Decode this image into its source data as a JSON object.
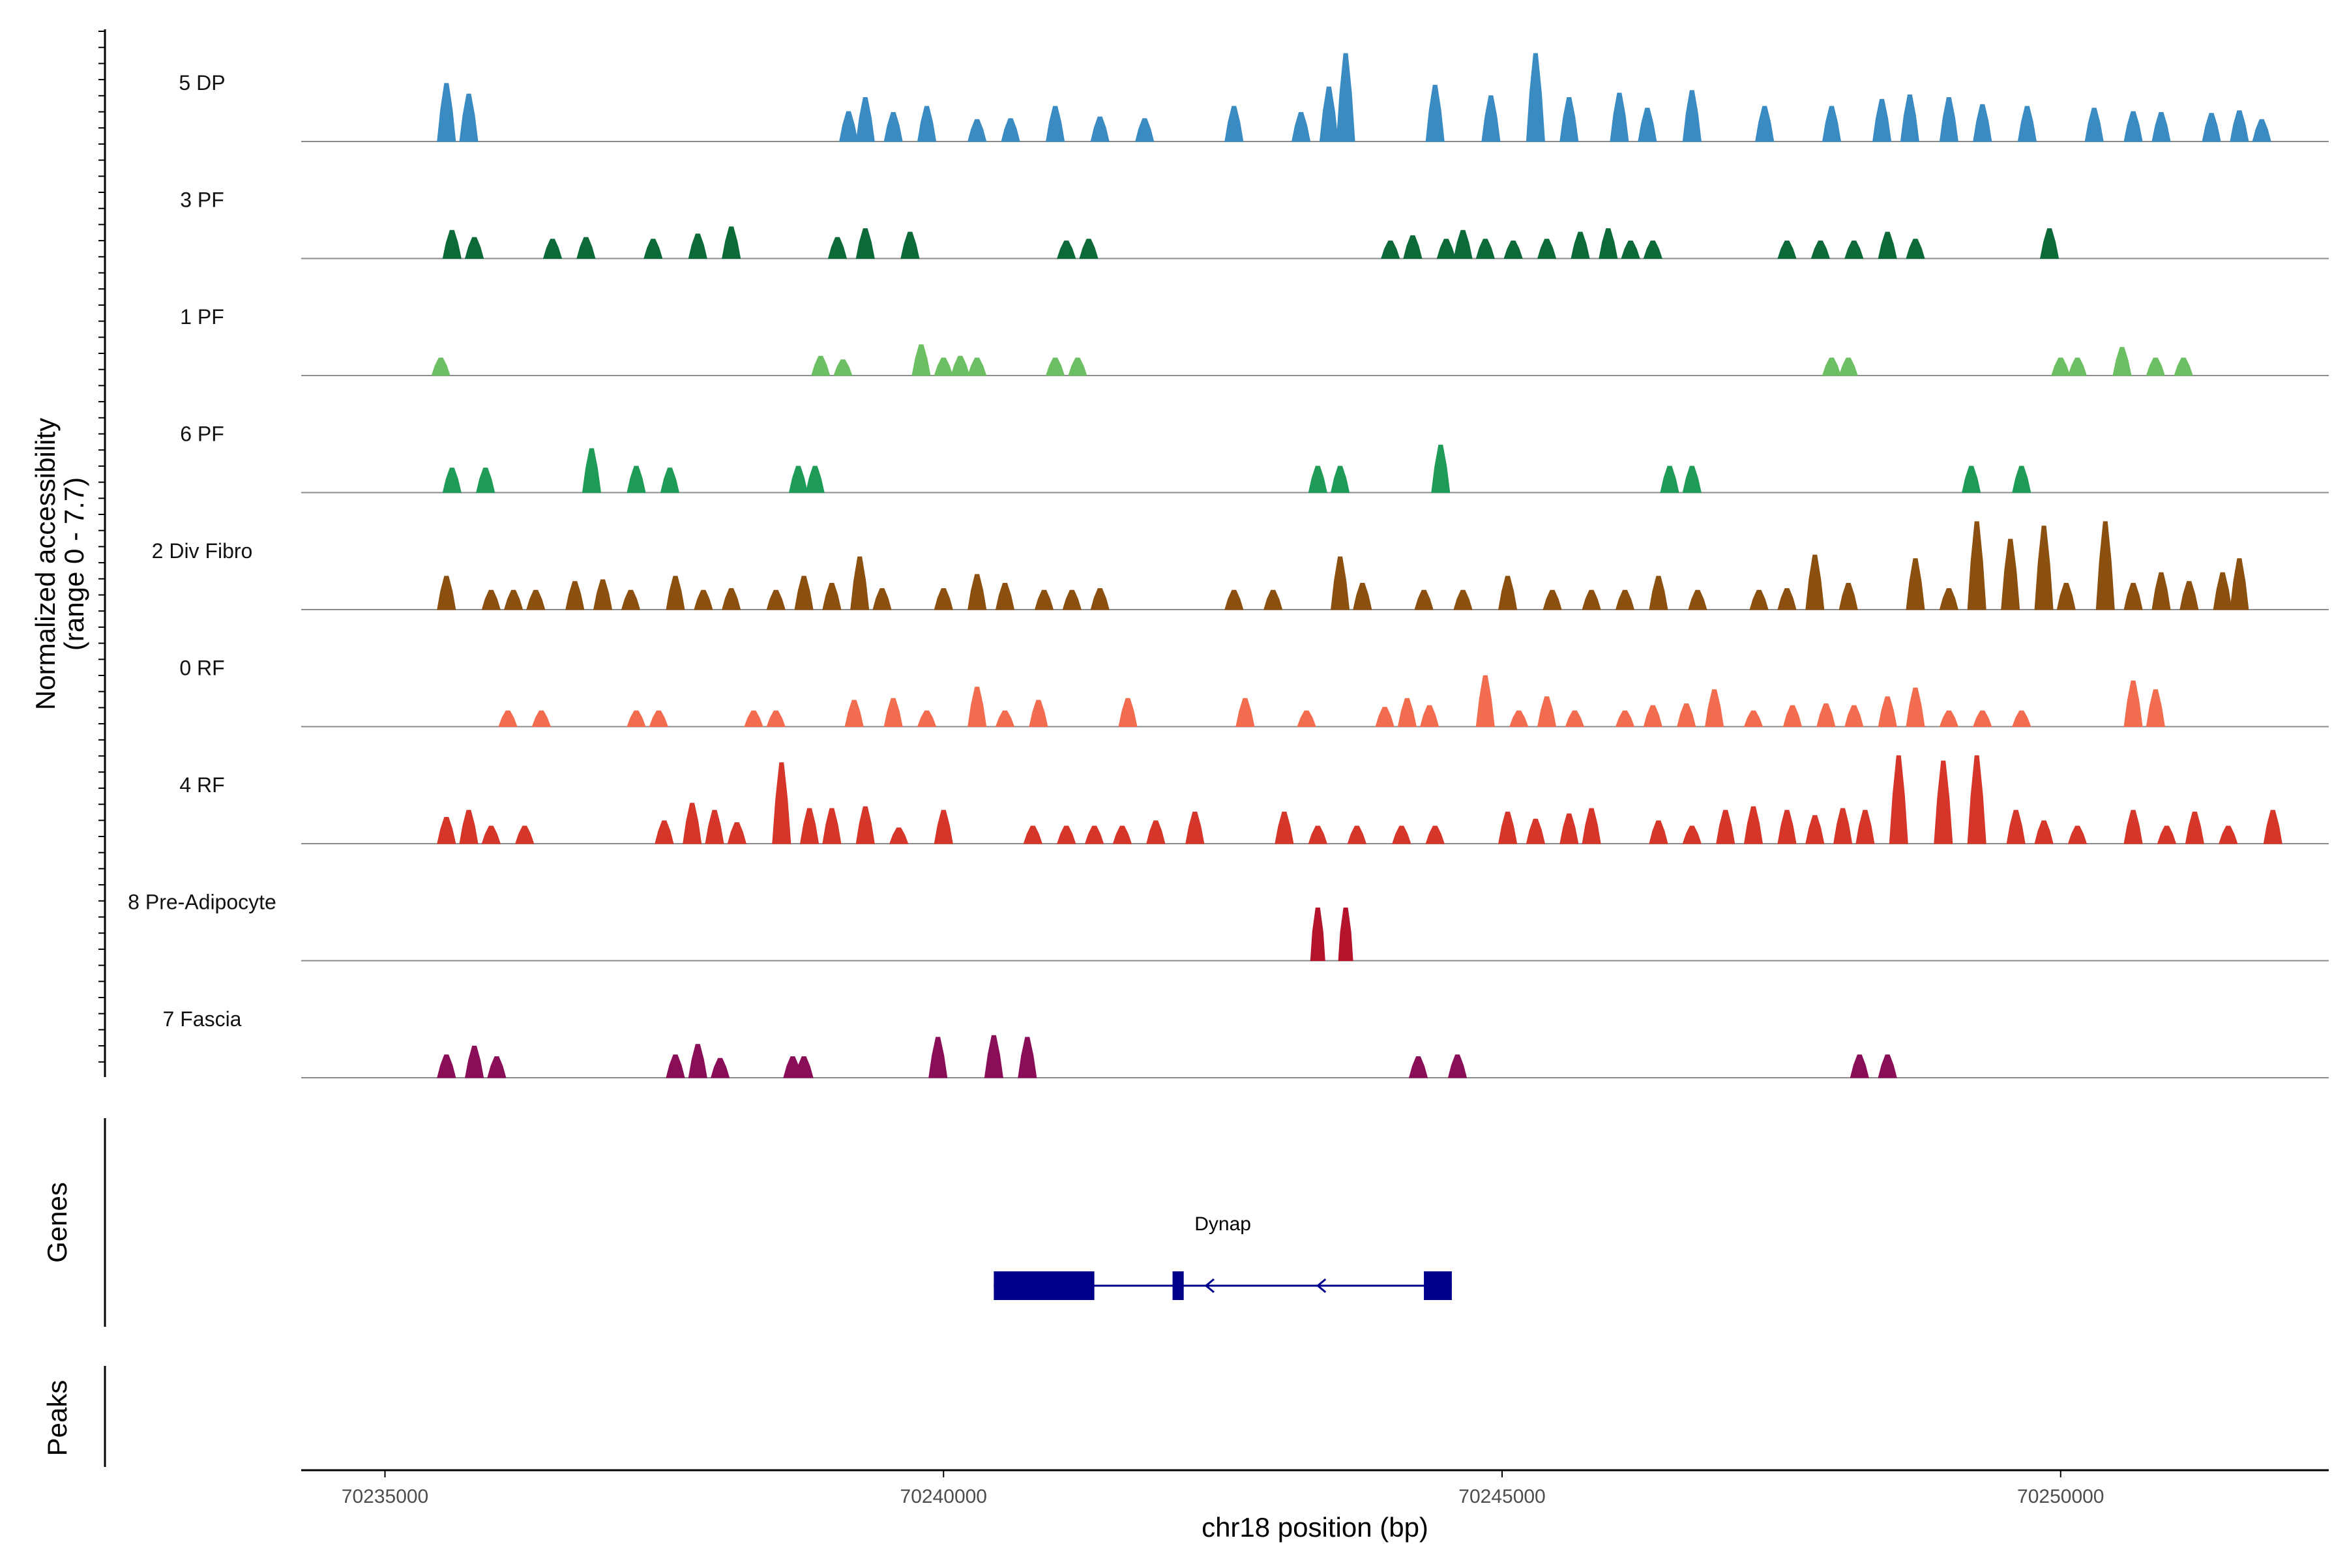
{
  "chart_data": {
    "type": "area",
    "title": "",
    "ylabel_line1": "Normalized accessibility",
    "ylabel_line2": "(range 0 - 7.7)",
    "ylim": [
      0,
      7.7
    ],
    "xlabel": "chr18 position (bp)",
    "xlim": [
      70234250,
      70252400
    ],
    "xticks": [
      70235000,
      70240000,
      70245000,
      70250000
    ],
    "xtick_labels": [
      "70235000",
      "70240000",
      "70245000",
      "70250000"
    ],
    "tracks": [
      {
        "name": "5 DP",
        "color": "#3a8bc2",
        "peaks": [
          [
            70235550,
            6.6
          ],
          [
            70235750,
            5.4
          ],
          [
            70236500,
            0
          ],
          [
            70239150,
            3.4
          ],
          [
            70239300,
            5.0
          ],
          [
            70239550,
            3.3
          ],
          [
            70239850,
            4.0
          ],
          [
            70240300,
            2.5
          ],
          [
            70240600,
            2.6
          ],
          [
            70241000,
            4.0
          ],
          [
            70241400,
            2.8
          ],
          [
            70241800,
            2.6
          ],
          [
            70242600,
            4.0
          ],
          [
            70243200,
            3.3
          ],
          [
            70243450,
            6.2
          ],
          [
            70243600,
            10.0
          ],
          [
            70244400,
            6.4
          ],
          [
            70244900,
            5.2
          ],
          [
            70245300,
            10.0
          ],
          [
            70245600,
            5.0
          ],
          [
            70246050,
            5.5
          ],
          [
            70246300,
            3.8
          ],
          [
            70246700,
            5.8
          ],
          [
            70247350,
            4.0
          ],
          [
            70247950,
            4.0
          ],
          [
            70248400,
            4.8
          ],
          [
            70248650,
            5.3
          ],
          [
            70249000,
            5.0
          ],
          [
            70249300,
            4.2
          ],
          [
            70249700,
            4.0
          ],
          [
            70250300,
            3.8
          ],
          [
            70250650,
            3.4
          ],
          [
            70250900,
            3.3
          ],
          [
            70251350,
            3.2
          ],
          [
            70251600,
            3.5
          ],
          [
            70251800,
            2.5
          ]
        ]
      },
      {
        "name": "3 PF",
        "color": "#0b6a38",
        "peaks": [
          [
            70235600,
            3.2
          ],
          [
            70235800,
            2.4
          ],
          [
            70236500,
            2.2
          ],
          [
            70236800,
            2.4
          ],
          [
            70237400,
            2.2
          ],
          [
            70237800,
            2.8
          ],
          [
            70238100,
            3.6
          ],
          [
            70238500,
            0
          ],
          [
            70239050,
            2.4
          ],
          [
            70239300,
            3.4
          ],
          [
            70239700,
            3.0
          ],
          [
            70241100,
            2.0
          ],
          [
            70241300,
            2.2
          ],
          [
            70244000,
            2.0
          ],
          [
            70244200,
            2.6
          ],
          [
            70244500,
            2.2
          ],
          [
            70244650,
            3.2
          ],
          [
            70244850,
            2.2
          ],
          [
            70245100,
            2.0
          ],
          [
            70245400,
            2.2
          ],
          [
            70245700,
            3.0
          ],
          [
            70245950,
            3.4
          ],
          [
            70246150,
            2.0
          ],
          [
            70246350,
            2.0
          ],
          [
            70247550,
            2.0
          ],
          [
            70247850,
            2.0
          ],
          [
            70248150,
            2.0
          ],
          [
            70248450,
            3.0
          ],
          [
            70248700,
            2.2
          ],
          [
            70249900,
            3.4
          ]
        ]
      },
      {
        "name": "1 PF",
        "color": "#6dbf63",
        "peaks": [
          [
            70235500,
            2.0
          ],
          [
            70238900,
            2.2
          ],
          [
            70239100,
            1.8
          ],
          [
            70239800,
            3.5
          ],
          [
            70240000,
            2.0
          ],
          [
            70240150,
            2.2
          ],
          [
            70240300,
            2.0
          ],
          [
            70241000,
            2.0
          ],
          [
            70241200,
            2.0
          ],
          [
            70247950,
            2.0
          ],
          [
            70248100,
            2.0
          ],
          [
            70250000,
            2.0
          ],
          [
            70250150,
            2.0
          ],
          [
            70250550,
            3.2
          ],
          [
            70250850,
            2.0
          ],
          [
            70251100,
            2.0
          ]
        ]
      },
      {
        "name": "6 PF",
        "color": "#1e9b56",
        "peaks": [
          [
            70235600,
            2.8
          ],
          [
            70235900,
            2.8
          ],
          [
            70236850,
            5.0
          ],
          [
            70237250,
            3.0
          ],
          [
            70237550,
            2.8
          ],
          [
            70238700,
            3.0
          ],
          [
            70238850,
            3.0
          ],
          [
            70243350,
            3.0
          ],
          [
            70243550,
            3.0
          ],
          [
            70244450,
            5.4
          ],
          [
            70246500,
            3.0
          ],
          [
            70246700,
            3.0
          ],
          [
            70249200,
            3.0
          ],
          [
            70249650,
            3.0
          ]
        ]
      },
      {
        "name": "2 Div Fibro",
        "color": "#8b5010",
        "peaks": [
          [
            70235550,
            3.8
          ],
          [
            70235950,
            2.2
          ],
          [
            70236150,
            2.2
          ],
          [
            70236350,
            2.2
          ],
          [
            70236700,
            3.2
          ],
          [
            70236950,
            3.4
          ],
          [
            70237200,
            2.2
          ],
          [
            70237600,
            3.8
          ],
          [
            70237850,
            2.2
          ],
          [
            70238100,
            2.4
          ],
          [
            70238500,
            2.2
          ],
          [
            70238750,
            3.8
          ],
          [
            70239000,
            3.0
          ],
          [
            70239250,
            6.0
          ],
          [
            70239450,
            2.4
          ],
          [
            70240000,
            2.4
          ],
          [
            70240300,
            4.0
          ],
          [
            70240550,
            3.0
          ],
          [
            70240900,
            2.2
          ],
          [
            70241150,
            2.2
          ],
          [
            70241400,
            2.4
          ],
          [
            70242600,
            2.2
          ],
          [
            70242950,
            2.2
          ],
          [
            70243550,
            6.0
          ],
          [
            70243750,
            3.0
          ],
          [
            70244300,
            2.2
          ],
          [
            70244650,
            2.2
          ],
          [
            70245050,
            3.8
          ],
          [
            70245450,
            2.2
          ],
          [
            70245800,
            2.2
          ],
          [
            70246100,
            2.2
          ],
          [
            70246400,
            3.8
          ],
          [
            70246750,
            2.2
          ],
          [
            70247300,
            2.2
          ],
          [
            70247550,
            2.4
          ],
          [
            70247800,
            6.2
          ],
          [
            70248100,
            3.0
          ],
          [
            70248700,
            5.8
          ],
          [
            70249000,
            2.4
          ],
          [
            70249250,
            10.0
          ],
          [
            70249550,
            8.0
          ],
          [
            70249850,
            9.5
          ],
          [
            70250050,
            3.0
          ],
          [
            70250400,
            10.0
          ],
          [
            70250650,
            3.0
          ],
          [
            70250900,
            4.2
          ],
          [
            70251150,
            3.2
          ],
          [
            70251450,
            4.2
          ],
          [
            70251600,
            5.8
          ]
        ]
      },
      {
        "name": "0 RF",
        "color": "#f26c4f",
        "peaks": [
          [
            70236100,
            1.8
          ],
          [
            70236400,
            1.8
          ],
          [
            70237250,
            1.8
          ],
          [
            70237450,
            1.8
          ],
          [
            70238300,
            1.8
          ],
          [
            70238500,
            1.8
          ],
          [
            70239200,
            3.0
          ],
          [
            70239550,
            3.2
          ],
          [
            70239850,
            1.8
          ],
          [
            70240300,
            4.5
          ],
          [
            70240550,
            1.8
          ],
          [
            70240850,
            3.0
          ],
          [
            70241650,
            3.2
          ],
          [
            70242700,
            3.2
          ],
          [
            70243250,
            1.8
          ],
          [
            70243950,
            2.2
          ],
          [
            70244150,
            3.2
          ],
          [
            70244350,
            2.4
          ],
          [
            70244850,
            5.8
          ],
          [
            70245150,
            1.8
          ],
          [
            70245400,
            3.4
          ],
          [
            70245650,
            1.8
          ],
          [
            70246100,
            1.8
          ],
          [
            70246350,
            2.4
          ],
          [
            70246650,
            2.6
          ],
          [
            70246900,
            4.2
          ],
          [
            70247250,
            1.8
          ],
          [
            70247600,
            2.4
          ],
          [
            70247900,
            2.6
          ],
          [
            70248150,
            2.4
          ],
          [
            70248450,
            3.4
          ],
          [
            70248700,
            4.4
          ],
          [
            70249000,
            1.8
          ],
          [
            70249300,
            1.8
          ],
          [
            70249650,
            1.8
          ],
          [
            70250650,
            5.2
          ],
          [
            70250850,
            4.2
          ]
        ]
      },
      {
        "name": "4 RF",
        "color": "#d63629",
        "peaks": [
          [
            70235550,
            3.0
          ],
          [
            70235750,
            3.8
          ],
          [
            70235950,
            2.0
          ],
          [
            70236250,
            2.0
          ],
          [
            70237500,
            2.6
          ],
          [
            70237750,
            4.6
          ],
          [
            70237950,
            3.8
          ],
          [
            70238150,
            2.4
          ],
          [
            70238550,
            9.2
          ],
          [
            70238800,
            4.0
          ],
          [
            70239000,
            4.0
          ],
          [
            70239300,
            4.2
          ],
          [
            70239600,
            1.8
          ],
          [
            70240000,
            3.8
          ],
          [
            70240800,
            2.0
          ],
          [
            70241100,
            2.0
          ],
          [
            70241350,
            2.0
          ],
          [
            70241600,
            2.0
          ],
          [
            70241900,
            2.6
          ],
          [
            70242250,
            3.6
          ],
          [
            70243050,
            3.6
          ],
          [
            70243350,
            2.0
          ],
          [
            70243700,
            2.0
          ],
          [
            70244100,
            2.0
          ],
          [
            70244400,
            2.0
          ],
          [
            70245050,
            3.6
          ],
          [
            70245300,
            2.8
          ],
          [
            70245600,
            3.4
          ],
          [
            70245800,
            4.0
          ],
          [
            70246400,
            2.6
          ],
          [
            70246700,
            2.0
          ],
          [
            70247000,
            3.8
          ],
          [
            70247250,
            4.2
          ],
          [
            70247550,
            3.8
          ],
          [
            70247800,
            3.2
          ],
          [
            70248050,
            4.0
          ],
          [
            70248250,
            3.8
          ],
          [
            70248550,
            10.0
          ],
          [
            70248950,
            9.4
          ],
          [
            70249250,
            10.0
          ],
          [
            70249600,
            3.8
          ],
          [
            70249850,
            2.6
          ],
          [
            70250150,
            2.0
          ],
          [
            70250650,
            3.8
          ],
          [
            70250950,
            2.0
          ],
          [
            70251200,
            3.6
          ],
          [
            70251500,
            2.0
          ],
          [
            70251900,
            3.8
          ]
        ]
      },
      {
        "name": "8 Pre-Adipocyte",
        "color": "#b3142c",
        "peaks": [
          [
            70243350,
            6.0
          ],
          [
            70243600,
            6.0
          ]
        ]
      },
      {
        "name": "7 Fascia",
        "color": "#8a0e57",
        "peaks": [
          [
            70235550,
            2.6
          ],
          [
            70235800,
            3.6
          ],
          [
            70236000,
            2.4
          ],
          [
            70237600,
            2.6
          ],
          [
            70237800,
            3.8
          ],
          [
            70238000,
            2.2
          ],
          [
            70238650,
            2.4
          ],
          [
            70238750,
            2.4
          ],
          [
            70239950,
            4.6
          ],
          [
            70240450,
            4.8
          ],
          [
            70240750,
            4.6
          ],
          [
            70244250,
            2.4
          ],
          [
            70244600,
            2.6
          ],
          [
            70248200,
            2.6
          ],
          [
            70248450,
            2.6
          ]
        ]
      }
    ],
    "genes": [
      {
        "name": "Dynap",
        "strand": "-",
        "exons": [
          [
            70240450,
            70241350
          ],
          [
            70242050,
            70242150
          ],
          [
            70244300,
            70244550
          ]
        ],
        "arrows": [
          70241250,
          70242350,
          70243350
        ]
      }
    ],
    "gene_panel_title": "Genes",
    "peak_panel_title": "Peaks"
  }
}
